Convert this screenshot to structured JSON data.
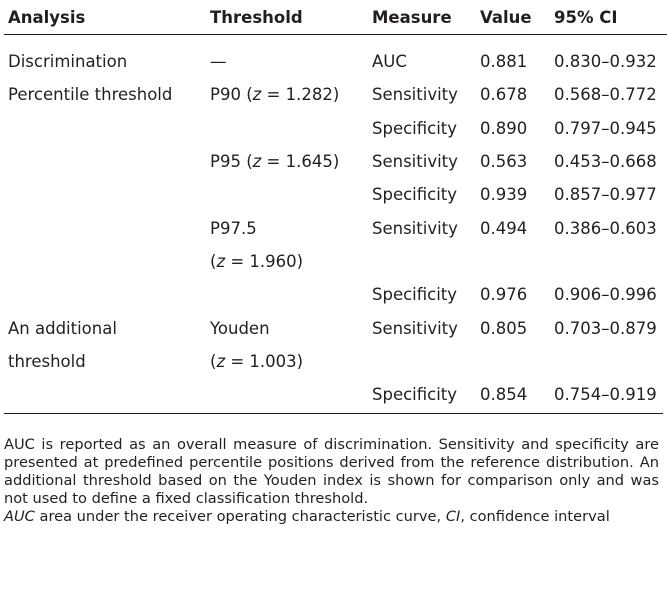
{
  "table": {
    "headers": [
      "Analysis",
      "Threshold",
      "Measure",
      "Value",
      "95% CI"
    ],
    "rows": [
      {
        "analysis": "Discrimination",
        "threshold": "—",
        "measure": "AUC",
        "value": "0.881",
        "ci": "0.830–0.932"
      },
      {
        "analysis": "Percentile threshold",
        "threshold_label": "P90",
        "threshold_z": "(z = 1.282)",
        "measure": "Sensitivity",
        "value": "0.678",
        "ci": "0.568–0.772"
      },
      {
        "analysis": "",
        "threshold": "",
        "measure": "Specificity",
        "value": "0.890",
        "ci": "0.797–0.945"
      },
      {
        "analysis": "",
        "threshold_label": "P95",
        "threshold_z": "(z = 1.645)",
        "measure": "Sensitivity",
        "value": "0.563",
        "ci": "0.453–0.668"
      },
      {
        "analysis": "",
        "threshold": "",
        "measure": "Specificity",
        "value": "0.939",
        "ci": "0.857–0.977"
      },
      {
        "analysis": "",
        "threshold": "P97.5",
        "measure": "Sensitivity",
        "value": "0.494",
        "ci": "0.386–0.603"
      },
      {
        "analysis": "",
        "threshold": "(z = 1.960)",
        "measure": "",
        "value": "",
        "ci": ""
      },
      {
        "analysis": "",
        "threshold": "",
        "measure": "Specificity",
        "value": "0.976",
        "ci": "0.906–0.996"
      },
      {
        "analysis": "An additional",
        "threshold": "Youden",
        "measure": "Sensitivity",
        "value": "0.805",
        "ci": "0.703–0.879"
      },
      {
        "analysis": "threshold",
        "threshold": "(z = 1.003)",
        "measure": "",
        "value": "",
        "ci": ""
      },
      {
        "analysis": "",
        "threshold": "",
        "measure": "Specificity",
        "value": "0.854",
        "ci": "0.754–0.919"
      }
    ]
  },
  "notes": {
    "paragraph": "AUC is reported as an overall measure of discrimination. Sensitivity and specificity are presented at predefined percentile positions derived from the reference distribution. An additional threshold based on the Youden index is shown for comparison only and was not used to define a fixed classification threshold.",
    "abbr_auc": "AUC",
    "abbr_auc_def": " area under the receiver operating characteristic curve, ",
    "abbr_ci": "CI",
    "abbr_ci_def": ", confidence interval"
  }
}
